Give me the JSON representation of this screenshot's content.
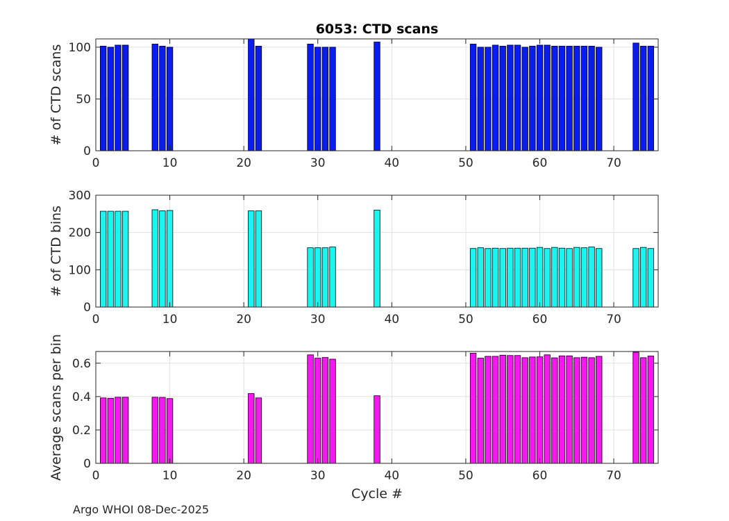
{
  "footer": "Argo WHOI 08-Dec-2025",
  "chart_data": [
    {
      "type": "bar",
      "title": "6053: CTD scans",
      "xlabel": "",
      "ylabel": "# of CTD scans",
      "xlim": [
        0,
        76
      ],
      "ylim": [
        0,
        108
      ],
      "xticks": [
        0,
        10,
        20,
        30,
        40,
        50,
        60,
        70
      ],
      "yticks": [
        0,
        50,
        100
      ],
      "tick_labels_x": [
        "0",
        "10",
        "20",
        "30",
        "40",
        "50",
        "60",
        "70"
      ],
      "tick_labels_y": [
        "0",
        "50",
        "100"
      ],
      "color": "#0a1cf0",
      "grid": true,
      "x": [
        1,
        2,
        3,
        4,
        8,
        9,
        10,
        21,
        22,
        29,
        30,
        31,
        32,
        38,
        51,
        52,
        53,
        54,
        55,
        56,
        57,
        58,
        59,
        60,
        61,
        62,
        63,
        64,
        65,
        66,
        67,
        68,
        73,
        74,
        75
      ],
      "values": [
        101,
        100,
        102,
        102,
        103,
        101,
        100,
        108,
        101,
        103,
        100,
        100,
        100,
        105,
        103,
        100,
        100,
        102,
        101,
        102,
        102,
        100,
        101,
        102,
        102,
        101,
        101,
        101,
        101,
        101,
        101,
        100,
        104,
        101,
        101
      ]
    },
    {
      "type": "bar",
      "title": "",
      "xlabel": "",
      "ylabel": "# of CTD bins",
      "xlim": [
        0,
        76
      ],
      "ylim": [
        0,
        300
      ],
      "xticks": [
        0,
        10,
        20,
        30,
        40,
        50,
        60,
        70
      ],
      "yticks": [
        0,
        100,
        200,
        300
      ],
      "tick_labels_x": [
        "0",
        "10",
        "20",
        "30",
        "40",
        "50",
        "60",
        "70"
      ],
      "tick_labels_y": [
        "0",
        "100",
        "200",
        "300"
      ],
      "color": "#19f5f0",
      "grid": true,
      "x": [
        1,
        2,
        3,
        4,
        8,
        9,
        10,
        21,
        22,
        29,
        30,
        31,
        32,
        38,
        51,
        52,
        53,
        54,
        55,
        56,
        57,
        58,
        59,
        60,
        61,
        62,
        63,
        64,
        65,
        66,
        67,
        68,
        73,
        74,
        75
      ],
      "values": [
        257,
        257,
        257,
        257,
        261,
        258,
        259,
        258,
        258,
        159,
        159,
        159,
        161,
        260,
        157,
        159,
        157,
        158,
        157,
        158,
        158,
        158,
        158,
        160,
        157,
        160,
        158,
        157,
        160,
        159,
        161,
        157,
        157,
        160,
        157
      ]
    },
    {
      "type": "bar",
      "title": "",
      "xlabel": "Cycle #",
      "ylabel": "Average scans per bin",
      "xlim": [
        0,
        76
      ],
      "ylim": [
        0,
        0.67
      ],
      "xticks": [
        0,
        10,
        20,
        30,
        40,
        50,
        60,
        70
      ],
      "yticks": [
        0,
        0.2,
        0.4,
        0.6
      ],
      "tick_labels_x": [
        "0",
        "10",
        "20",
        "30",
        "40",
        "50",
        "60",
        "70"
      ],
      "tick_labels_y": [
        "0",
        "0.2",
        "0.4",
        "0.6"
      ],
      "color": "#f519f0",
      "grid": true,
      "x": [
        1,
        2,
        3,
        4,
        8,
        9,
        10,
        21,
        22,
        29,
        30,
        31,
        32,
        38,
        51,
        52,
        53,
        54,
        55,
        56,
        57,
        58,
        59,
        60,
        61,
        62,
        63,
        64,
        65,
        66,
        67,
        68,
        73,
        74,
        75
      ],
      "values": [
        0.392,
        0.39,
        0.396,
        0.396,
        0.396,
        0.395,
        0.388,
        0.418,
        0.392,
        0.65,
        0.63,
        0.634,
        0.624,
        0.405,
        0.66,
        0.63,
        0.641,
        0.641,
        0.648,
        0.646,
        0.646,
        0.633,
        0.637,
        0.638,
        0.65,
        0.632,
        0.644,
        0.644,
        0.633,
        0.636,
        0.633,
        0.641,
        0.666,
        0.633,
        0.643
      ]
    }
  ]
}
